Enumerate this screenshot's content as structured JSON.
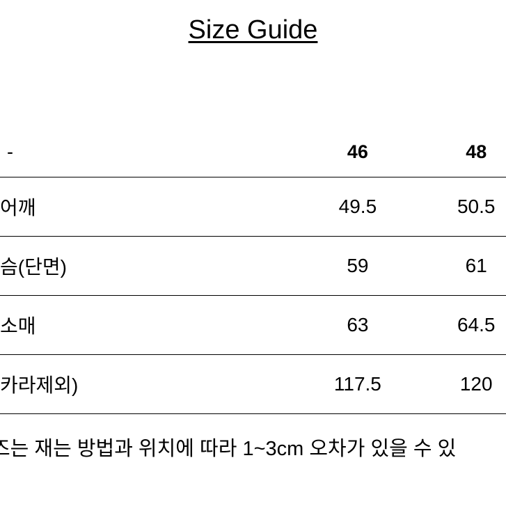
{
  "title": "Size Guide",
  "columns": {
    "dash": "-",
    "size46": "46",
    "size48": "48"
  },
  "rows": [
    {
      "label": "어깨",
      "v46": "49.5",
      "v48": "50.5"
    },
    {
      "label": "슴(단면)",
      "v46": "59",
      "v48": "61"
    },
    {
      "label": "소매",
      "v46": "63",
      "v48": "64.5"
    },
    {
      "label": "카라제외)",
      "v46": "117.5",
      "v48": "120"
    }
  ],
  "note": "즈는 재는 방법과 위치에 따라 1~3cm 오차가 있을 수 있",
  "style": {
    "background_color": "#ffffff",
    "text_color": "#000000",
    "border_color": "#000000",
    "title_fontsize": 38,
    "header_fontsize": 27,
    "cell_fontsize": 28,
    "note_fontsize": 29
  }
}
